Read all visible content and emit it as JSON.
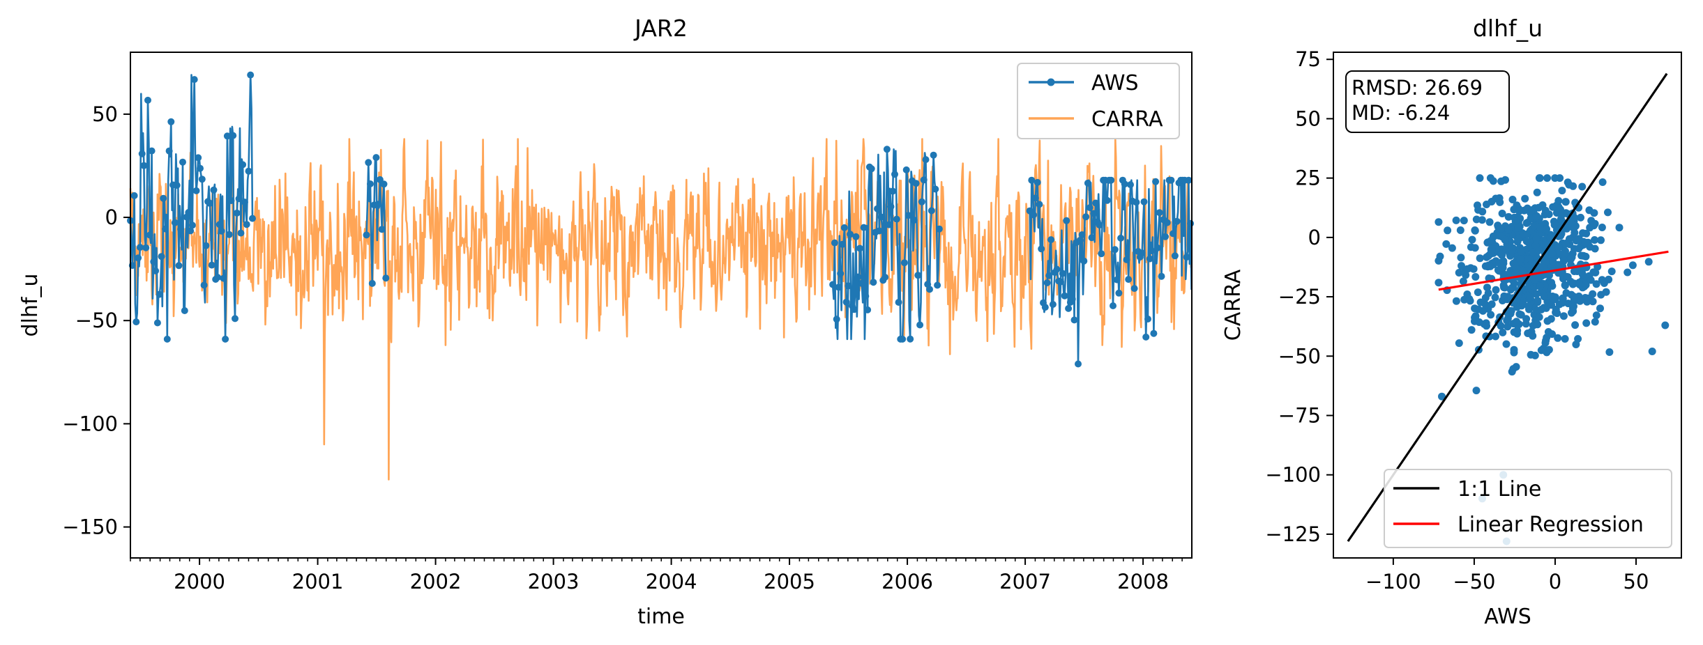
{
  "chart_data": [
    {
      "type": "line",
      "title": "JAR2",
      "xlabel": "time",
      "ylabel": "dlhf_u",
      "xlim": [
        "1999-06-01",
        "2008-05-31"
      ],
      "ylim": [
        -165,
        80
      ],
      "xticks": [
        "2000",
        "2001",
        "2002",
        "2003",
        "2004",
        "2005",
        "2006",
        "2007",
        "2008"
      ],
      "yticks": [
        50,
        0,
        -50,
        -100,
        -150
      ],
      "legend": {
        "position": "upper right"
      },
      "series": [
        {
          "name": "AWS",
          "color": "#1f77b4",
          "marker": "circle",
          "segments": [
            {
              "start": "1999-06-01",
              "end": "2000-06-15",
              "mean": 2,
              "spread": 22,
              "max": 69,
              "min": -59
            },
            {
              "start": "2001-06-01",
              "end": "2001-08-01",
              "mean": 0,
              "spread": 12,
              "max": 29,
              "min": -32
            },
            {
              "start": "2005-05-15",
              "end": "2006-04-15",
              "mean": -8,
              "spread": 20,
              "max": 33,
              "min": -59
            },
            {
              "start": "2007-01-15",
              "end": "2008-05-31",
              "mean": -10,
              "spread": 20,
              "max": 18,
              "min": -71
            }
          ]
        },
        {
          "name": "CARRA",
          "color": "#ff7f0e",
          "opacity": 0.7,
          "range": [
            "1999-06-01",
            "2008-05-31"
          ],
          "mean": -12,
          "spread": 16,
          "max": 38,
          "min": -127
        }
      ]
    },
    {
      "type": "scatter",
      "title": "dlhf_u",
      "xlabel": "AWS",
      "ylabel": "CARRA",
      "xlim": [
        -137,
        78
      ],
      "ylim": [
        -135,
        78
      ],
      "xticks": [
        -100,
        -50,
        0,
        50
      ],
      "yticks": [
        75,
        50,
        25,
        0,
        -25,
        -50,
        -75,
        -100,
        -125
      ],
      "stats_box": [
        "RMSD: 26.69",
        "MD: -6.24"
      ],
      "legend": {
        "position": "lower right"
      },
      "points": {
        "color": "#1f77b4",
        "center": [
          -14,
          -12
        ],
        "spread": [
          22,
          16
        ],
        "x_range": [
          -72,
          70
        ],
        "y_range": [
          -128,
          25
        ],
        "count": 700
      },
      "lines": [
        {
          "name": "1:1 Line",
          "color": "#000000",
          "from": [
            -128,
            -128
          ],
          "to": [
            69,
            69
          ]
        },
        {
          "name": "Linear Regression",
          "color": "#ff0000",
          "from": [
            -72,
            -22
          ],
          "to": [
            70,
            -6
          ]
        }
      ]
    }
  ]
}
